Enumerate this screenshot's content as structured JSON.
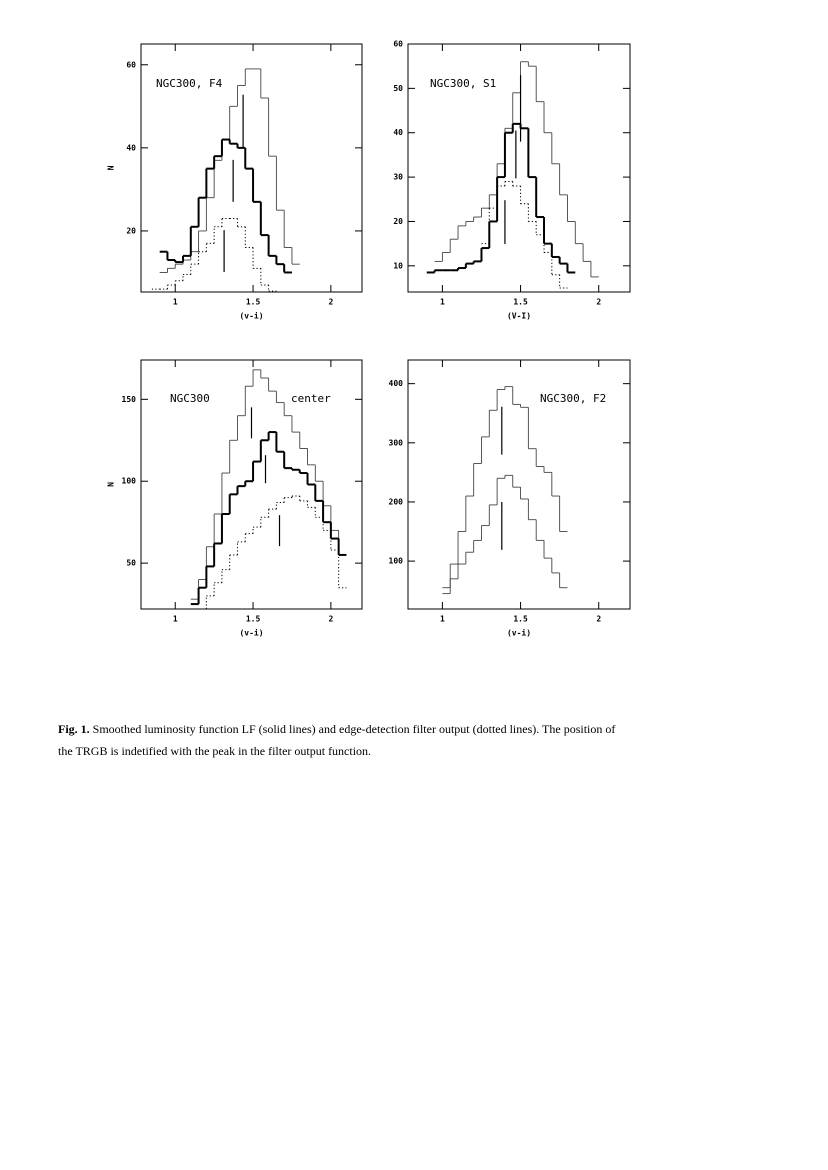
{
  "chart_data": [
    {
      "type": "step",
      "annotations": [
        "NGC300, F4"
      ],
      "xlabel": "(v-i)",
      "ylabel": "N",
      "xlim": [
        0.78,
        2.2
      ],
      "ylim": [
        5.3,
        65
      ],
      "xticks": [
        1,
        1.5,
        2
      ],
      "yticks": [
        20,
        40,
        60
      ],
      "series": [
        {
          "color": "#444444",
          "linewidth": 0.9,
          "style": "solid",
          "x": [
            0.9,
            0.95,
            1.0,
            1.05,
            1.1,
            1.15,
            1.2,
            1.25,
            1.3,
            1.35,
            1.4,
            1.45,
            1.5,
            1.55,
            1.6,
            1.65,
            1.7,
            1.75
          ],
          "values": [
            10,
            11,
            12,
            13,
            15,
            20,
            28,
            37,
            42,
            50,
            55,
            59,
            59,
            52,
            38,
            25,
            16,
            12
          ]
        },
        {
          "color": "#000000",
          "linewidth": 2,
          "style": "solid",
          "x": [
            0.9,
            0.95,
            1.0,
            1.05,
            1.1,
            1.15,
            1.2,
            1.25,
            1.3,
            1.35,
            1.4,
            1.45,
            1.5,
            1.55,
            1.6,
            1.65,
            1.7
          ],
          "values": [
            15,
            13,
            12.5,
            14,
            21,
            28,
            35,
            38,
            42,
            41,
            40,
            35,
            27,
            19,
            14,
            12,
            10
          ]
        },
        {
          "color": "#000000",
          "linewidth": 1,
          "style": "dotted",
          "x": [
            0.85,
            0.9,
            0.95,
            1.0,
            1.05,
            1.1,
            1.15,
            1.2,
            1.25,
            1.3,
            1.35,
            1.4,
            1.45,
            1.5,
            1.55,
            1.6
          ],
          "values": [
            6,
            6,
            7,
            8,
            9.5,
            12,
            15,
            17,
            21,
            23,
            23,
            21,
            16,
            11,
            7,
            5.5
          ]
        }
      ],
      "markers": [
        {
          "x": 1.436,
          "y": [
            40,
            52.8
          ]
        },
        {
          "x": 1.372,
          "y": [
            27,
            37.1
          ]
        },
        {
          "x": 1.314,
          "y": [
            10.1,
            20.2
          ]
        }
      ]
    },
    {
      "type": "step",
      "annotations": [
        "NGC300, S1"
      ],
      "xlabel": "(V-I)",
      "xlim": [
        0.78,
        2.2
      ],
      "ylim": [
        4.1,
        60
      ],
      "xticks": [
        1,
        1.5,
        2
      ],
      "yticks": [
        10,
        20,
        30,
        40,
        50,
        60
      ],
      "series": [
        {
          "color": "#444444",
          "linewidth": 0.9,
          "style": "solid",
          "x": [
            0.95,
            1.0,
            1.05,
            1.1,
            1.15,
            1.2,
            1.25,
            1.3,
            1.35,
            1.4,
            1.45,
            1.5,
            1.55,
            1.6,
            1.65,
            1.7,
            1.75,
            1.8,
            1.85,
            1.9,
            1.95
          ],
          "values": [
            11,
            13,
            16,
            19,
            20,
            21,
            23,
            26,
            33,
            41,
            49,
            56,
            55,
            47,
            40,
            33,
            26,
            20,
            15,
            11,
            7.5
          ]
        },
        {
          "color": "#000000",
          "linewidth": 2,
          "style": "solid",
          "x": [
            0.9,
            0.95,
            1.0,
            1.05,
            1.1,
            1.15,
            1.2,
            1.25,
            1.3,
            1.35,
            1.4,
            1.45,
            1.5,
            1.55,
            1.6,
            1.65,
            1.7,
            1.75,
            1.8
          ],
          "values": [
            8.5,
            9,
            9,
            9,
            9.5,
            10.5,
            11,
            14,
            20,
            30,
            40,
            42,
            41,
            30,
            21,
            15,
            12,
            10.5,
            8.5
          ]
        },
        {
          "color": "#000000",
          "linewidth": 1,
          "style": "dotted",
          "x": [
            1.25,
            1.3,
            1.35,
            1.4,
            1.45,
            1.5,
            1.55,
            1.6,
            1.65,
            1.7,
            1.75
          ],
          "values": [
            15,
            23,
            28,
            29,
            28,
            24,
            20,
            17,
            13,
            8,
            5
          ]
        }
      ],
      "markers": [
        {
          "x": 1.5,
          "y": [
            38,
            53
          ]
        },
        {
          "x": 1.47,
          "y": [
            29.7,
            40.5
          ]
        },
        {
          "x": 1.4,
          "y": [
            14.9,
            24.8
          ]
        }
      ]
    },
    {
      "type": "step",
      "annotations": [
        "NGC300",
        "center"
      ],
      "xlabel": "(v-i)",
      "ylabel": "N",
      "xlim": [
        0.78,
        2.2
      ],
      "ylim": [
        22,
        174
      ],
      "xticks": [
        1,
        1.5,
        2
      ],
      "yticks": [
        50,
        100,
        150
      ],
      "series": [
        {
          "color": "#444444",
          "linewidth": 0.9,
          "style": "solid",
          "x": [
            1.1,
            1.15,
            1.2,
            1.25,
            1.3,
            1.35,
            1.4,
            1.45,
            1.5,
            1.55,
            1.6,
            1.65,
            1.7,
            1.75,
            1.8,
            1.85,
            1.9,
            1.95,
            2.0,
            2.05
          ],
          "values": [
            28,
            40,
            60,
            80,
            105,
            125,
            140,
            158,
            168,
            163,
            155,
            148,
            140,
            130,
            120,
            110,
            100,
            85,
            70,
            55
          ]
        },
        {
          "color": "#000000",
          "linewidth": 2,
          "style": "solid",
          "x": [
            1.1,
            1.15,
            1.2,
            1.25,
            1.3,
            1.35,
            1.4,
            1.45,
            1.5,
            1.55,
            1.6,
            1.65,
            1.7,
            1.75,
            1.8,
            1.85,
            1.9,
            1.95,
            2.0,
            2.05
          ],
          "values": [
            25,
            35,
            48,
            62,
            80,
            92,
            97,
            100,
            112,
            125,
            130,
            118,
            108,
            107,
            105,
            98,
            88,
            75,
            65,
            55
          ]
        },
        {
          "color": "#000000",
          "linewidth": 1,
          "style": "dotted",
          "x": [
            1.15,
            1.2,
            1.25,
            1.3,
            1.35,
            1.4,
            1.45,
            1.5,
            1.55,
            1.6,
            1.65,
            1.7,
            1.75,
            1.8,
            1.85,
            1.9,
            1.95,
            2.0,
            2.05
          ],
          "values": [
            22,
            30,
            38,
            46,
            55,
            63,
            68,
            72,
            78,
            83,
            87,
            90,
            91,
            88,
            84,
            78,
            70,
            58,
            35
          ]
        }
      ],
      "markers": [
        {
          "x": 1.49,
          "y": [
            126.2,
            145.1
          ]
        },
        {
          "x": 1.58,
          "y": [
            98.8,
            115.9
          ]
        },
        {
          "x": 1.67,
          "y": [
            60.4,
            79.3
          ]
        }
      ]
    },
    {
      "type": "step",
      "annotations": [
        "NGC300, F2"
      ],
      "xlabel": "(v-i)",
      "xlim": [
        0.78,
        2.2
      ],
      "ylim": [
        19,
        440
      ],
      "xticks": [
        1,
        1.5,
        2
      ],
      "yticks": [
        100,
        200,
        300,
        400
      ],
      "series": [
        {
          "color": "#444444",
          "linewidth": 0.9,
          "style": "solid",
          "x": [
            1.0,
            1.05,
            1.1,
            1.15,
            1.2,
            1.25,
            1.3,
            1.35,
            1.4,
            1.45,
            1.5,
            1.55,
            1.6,
            1.65,
            1.7,
            1.75
          ],
          "values": [
            55,
            95,
            150,
            210,
            265,
            310,
            355,
            390,
            395,
            365,
            360,
            290,
            260,
            250,
            210,
            150
          ]
        },
        {
          "color": "#444444",
          "linewidth": 0.9,
          "style": "solid",
          "x": [
            1.0,
            1.05,
            1.1,
            1.15,
            1.2,
            1.25,
            1.3,
            1.35,
            1.4,
            1.45,
            1.5,
            1.55,
            1.6,
            1.65,
            1.7,
            1.75
          ],
          "values": [
            45,
            70,
            95,
            115,
            135,
            160,
            195,
            240,
            245,
            225,
            205,
            170,
            135,
            105,
            80,
            55
          ]
        }
      ],
      "markers": [
        {
          "x": 1.38,
          "y": [
            280,
            361
          ]
        },
        {
          "x": 1.38,
          "y": [
            119,
            200
          ]
        }
      ]
    }
  ],
  "caption": {
    "label": "Fig. 1.",
    "text": " Smoothed luminosity function LF (solid lines) and edge-detection filter output (dotted lines). The position of the TRGB is indetified with the peak in the filter output function."
  }
}
